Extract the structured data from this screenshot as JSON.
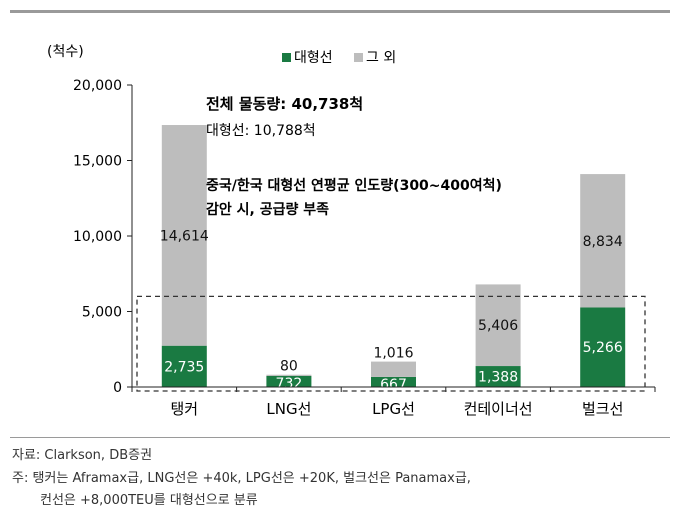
{
  "chart_data": {
    "type": "bar",
    "stacked": true,
    "unit_label": "(척수)",
    "categories": [
      "탱커",
      "LNG선",
      "LPG선",
      "컨테이너선",
      "벌크선"
    ],
    "series": [
      {
        "name": "대형선",
        "color": "#1a7a42",
        "values": [
          2735,
          732,
          667,
          1388,
          5266
        ],
        "labels": [
          "2,735",
          "732",
          "667",
          "1,388",
          "5,266"
        ]
      },
      {
        "name": "그 외",
        "color": "#bdbdbd",
        "values": [
          14614,
          80,
          1016,
          5406,
          8834
        ],
        "labels": [
          "14,614",
          "80",
          "1,016",
          "5,406",
          "8,834"
        ]
      }
    ],
    "ylim": [
      0,
      20000
    ],
    "yticks": [
      0,
      5000,
      10000,
      15000,
      20000
    ],
    "ytick_labels": [
      "0",
      "5,000",
      "10,000",
      "15,000",
      "20,000"
    ],
    "legend_position": "top",
    "annotations": {
      "total": "전체 물동량: 40,738척",
      "large": "대형선: 10,788척",
      "note_line1": "중국/한국 대형선 연평균 인도량(300~400여척)",
      "note_line2": "감안 시, 공급량 부족"
    },
    "highlight_box": {
      "ymax": 6000
    }
  },
  "footer": {
    "source": "자료: Clarkson, DB증권",
    "note_line1": "주: 탱커는 Aframax급, LNG선은 +40k, LPG선은 +20K, 벌크선은 Panamax급,",
    "note_line2": "컨선은 +8,000TEU를 대형선으로 분류"
  },
  "colors": {
    "axis": "#222222",
    "dashed": "#333333"
  }
}
